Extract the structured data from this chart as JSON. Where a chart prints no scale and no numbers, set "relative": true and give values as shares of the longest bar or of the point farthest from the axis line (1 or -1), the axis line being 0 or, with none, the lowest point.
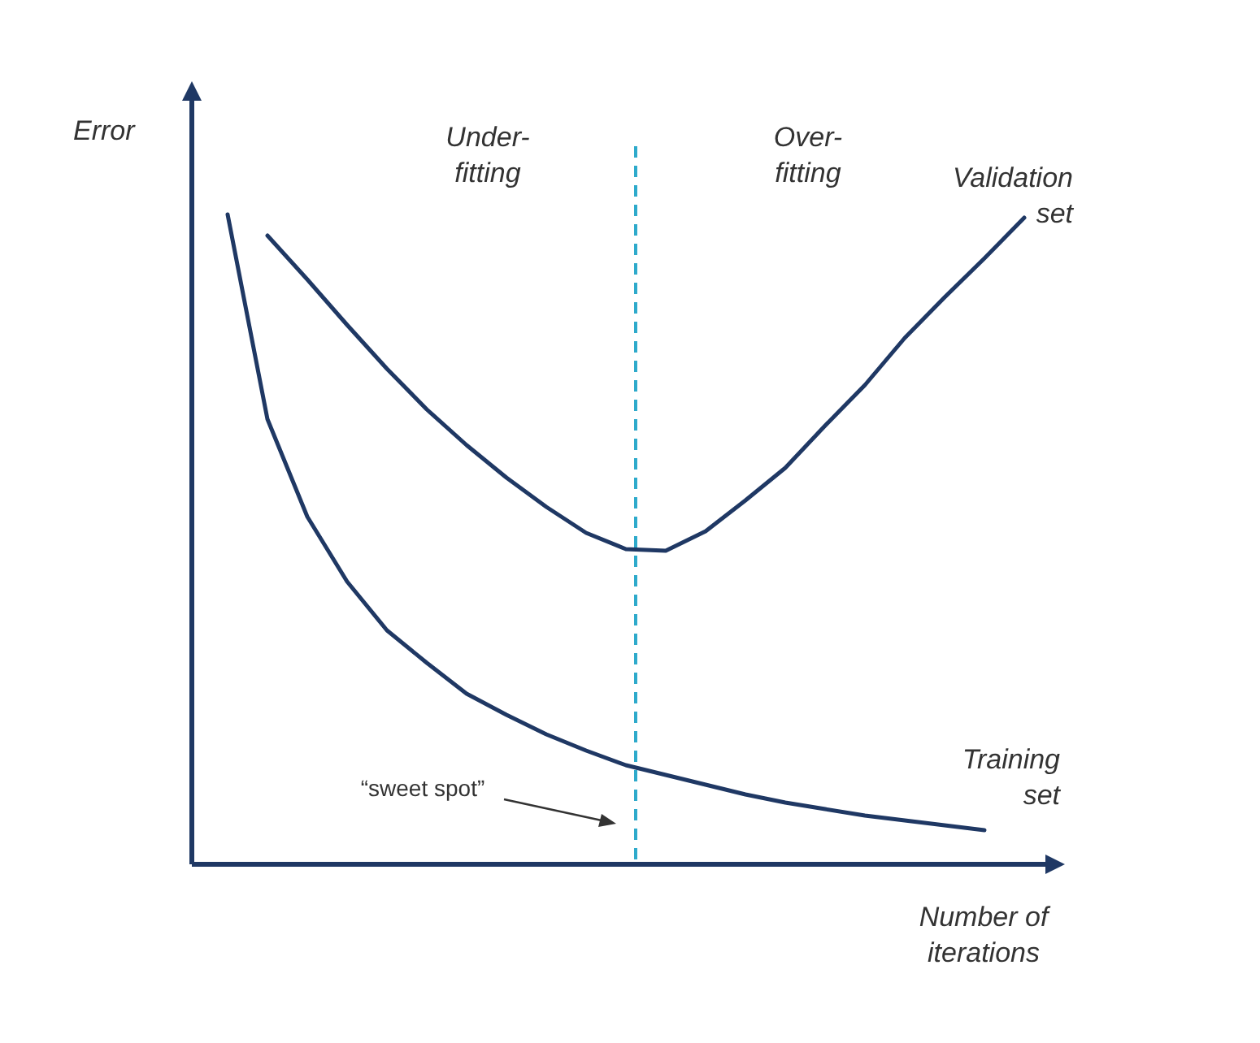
{
  "chart_data": {
    "type": "line",
    "relative": true,
    "xlabel": "Number of iterations",
    "ylabel": "Error",
    "tick_labels": false,
    "legend": false,
    "marker": "none",
    "line_style": "solid",
    "categories": [
      null,
      null,
      null,
      null,
      null,
      null,
      null,
      null,
      null,
      null,
      null,
      null,
      null,
      null,
      null,
      null,
      null,
      null,
      null,
      null,
      null
    ],
    "series": [
      {
        "name": "Validation set",
        "color": "#1f3864",
        "values": [
          null,
          0.9675,
          0.9,
          0.83,
          0.7625,
          0.7,
          0.645,
          0.595,
          0.55,
          0.51,
          0.485,
          0.4825,
          0.5125,
          0.56,
          0.61,
          0.675,
          0.7375,
          0.81,
          0.8725,
          0.9325,
          0.995
        ]
      },
      {
        "name": "Training set",
        "color": "#1f3864",
        "values": [
          1.0,
          0.685,
          0.535,
          0.435,
          0.36,
          0.31,
          0.2625,
          0.23,
          0.2,
          0.175,
          0.1525,
          0.1375,
          0.1225,
          0.1075,
          0.095,
          0.085,
          0.075,
          0.0675,
          0.06,
          0.0525,
          null
        ]
      }
    ],
    "annotations": [
      "Under-fitting",
      "Over-fitting",
      "“sweet spot”"
    ]
  }
}
